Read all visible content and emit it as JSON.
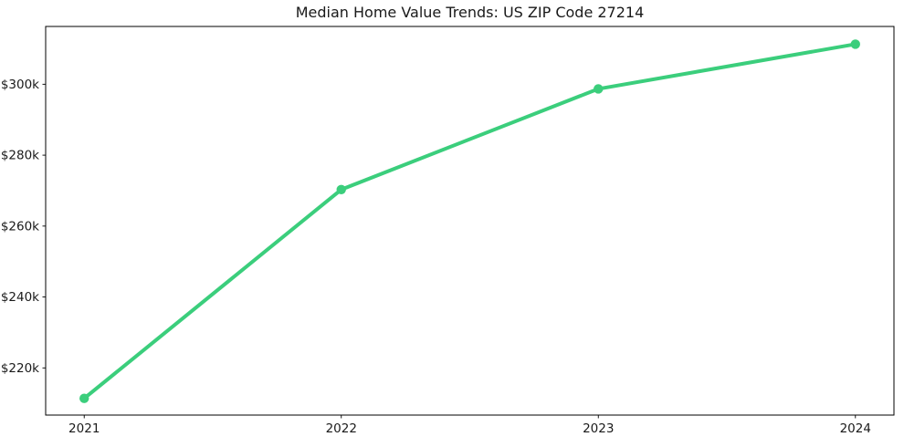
{
  "figure": {
    "background": "#ffffff"
  },
  "chart_data": {
    "type": "line",
    "title": "Median Home Value Trends: US ZIP Code 27214",
    "x": [
      2021,
      2022,
      2023,
      2024
    ],
    "values": [
      211400,
      270300,
      298700,
      311300
    ],
    "xlabel": "",
    "ylabel": "",
    "xlim": [
      2020.85,
      2024.15
    ],
    "ylim": [
      206700,
      316300
    ],
    "xticks": {
      "values": [
        2021,
        2022,
        2023,
        2024
      ],
      "labels": [
        "2021",
        "2022",
        "2023",
        "2024"
      ]
    },
    "yticks": {
      "values": [
        220000,
        240000,
        260000,
        280000,
        300000
      ],
      "labels": [
        "$220k",
        "$240k",
        "$260k",
        "$280k",
        "$300k"
      ]
    },
    "grid": false,
    "legend": "none",
    "line_color": "#3bce7c",
    "axis_color": "#000000",
    "text_color": "#1a1a1a"
  }
}
